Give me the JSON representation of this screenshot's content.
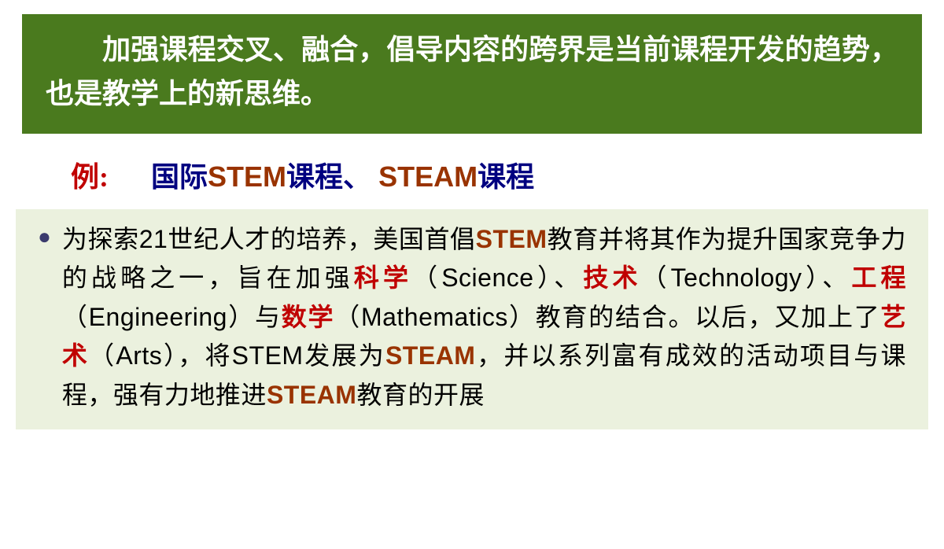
{
  "colors": {
    "header_bg": "#4a7a1e",
    "header_text": "#ffffff",
    "example_label": "#c00000",
    "example_cn": "#000080",
    "example_en": "#993300",
    "body_bg": "#ebf1de",
    "body_text": "#000000",
    "red": "#c00000",
    "brown": "#993300",
    "bullet": "#3b3b6d"
  },
  "typography": {
    "header_fontsize": 36,
    "example_fontsize": 36,
    "body_fontsize": 32,
    "font_family_cn": "SimSun",
    "font_family_latin": "Arial"
  },
  "header": {
    "text": "加强课程交叉、融合，倡导内容的跨界是当前课程开发的趋势，也是教学上的新思维。"
  },
  "example": {
    "label": "例:",
    "p1_cn1": "国际",
    "p1_en": "STEM",
    "p1_cn2": "课程、",
    "p2_en": "STEAM",
    "p2_cn": "课程"
  },
  "body": {
    "t1": "为探索",
    "t2_latin": "21",
    "t3": "世纪人才的培养，美国首倡",
    "t4_brown": "STEM",
    "t5": "教育并将其作为提升国家竞争力的战略之一，旨在加强",
    "t6_red": "科学",
    "t7": "（",
    "t8_latin": "Science",
    "t9": "）、",
    "t10_red": "技术",
    "t11": "（",
    "t12_latin": "Technology",
    "t13": "）、",
    "t14_red": "工程",
    "t15": "（",
    "t16_latin": "Engineering",
    "t17": "）与",
    "t18_red": "数学",
    "t19": "（",
    "t20_latin": "Mathematics",
    "t21": "）教育的结合。以后，又加上了",
    "t22_red": "艺术",
    "t23": "（",
    "t24_latin": "Arts",
    "t25": "），将",
    "t26_latin": "STEM",
    "t27": "发展为",
    "t28_brown": "STEAM",
    "t29": "，并以系列富有成效的活动项目与课程，强有力地推进",
    "t30_brown": "STEAM",
    "t31": "教育的开展"
  }
}
